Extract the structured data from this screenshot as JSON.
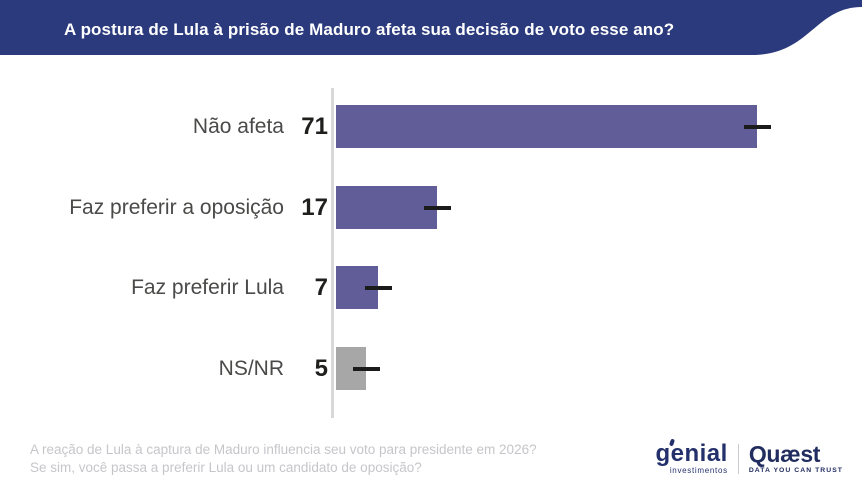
{
  "header": {
    "title": "A postura de Lula à prisão de Maduro afeta sua decisão de voto esse ano?",
    "bg_color": "#2B3A7C",
    "text_color": "#FFFFFF"
  },
  "chart_data": {
    "type": "bar",
    "orientation": "horizontal",
    "title": "A postura de Lula à prisão de Maduro afeta sua decisão de voto esse ano?",
    "categories": [
      "Não afeta",
      "Faz preferir a oposição",
      "Faz preferir Lula",
      "NS/NR"
    ],
    "values": [
      71,
      17,
      7,
      5
    ],
    "unit": "%",
    "xlim": [
      0,
      88
    ],
    "grid": false,
    "legend": "none",
    "bar_colors": [
      "#615D99",
      "#615D99",
      "#615D99",
      "#A7A7A7"
    ],
    "marker": "black dash centered at each bar end (margin-of-error tick)",
    "marker_color": "#1B1B1B",
    "axis_line_color": "#D8D8D8",
    "label_color": "#4A4A49",
    "value_color": "#1F1F1E"
  },
  "footer": {
    "note_line1": "A reação de Lula à captura de Maduro influencia seu voto para presidente em 2026?",
    "note_line2": "Se sim, você passa a preferir Lula ou um candidato de oposição?",
    "logos": {
      "genial": {
        "name": "genial",
        "subtitle": "investimentos"
      },
      "quaest": {
        "name": "Quæst",
        "subtitle": "DATA YOU CAN TRUST"
      }
    }
  }
}
